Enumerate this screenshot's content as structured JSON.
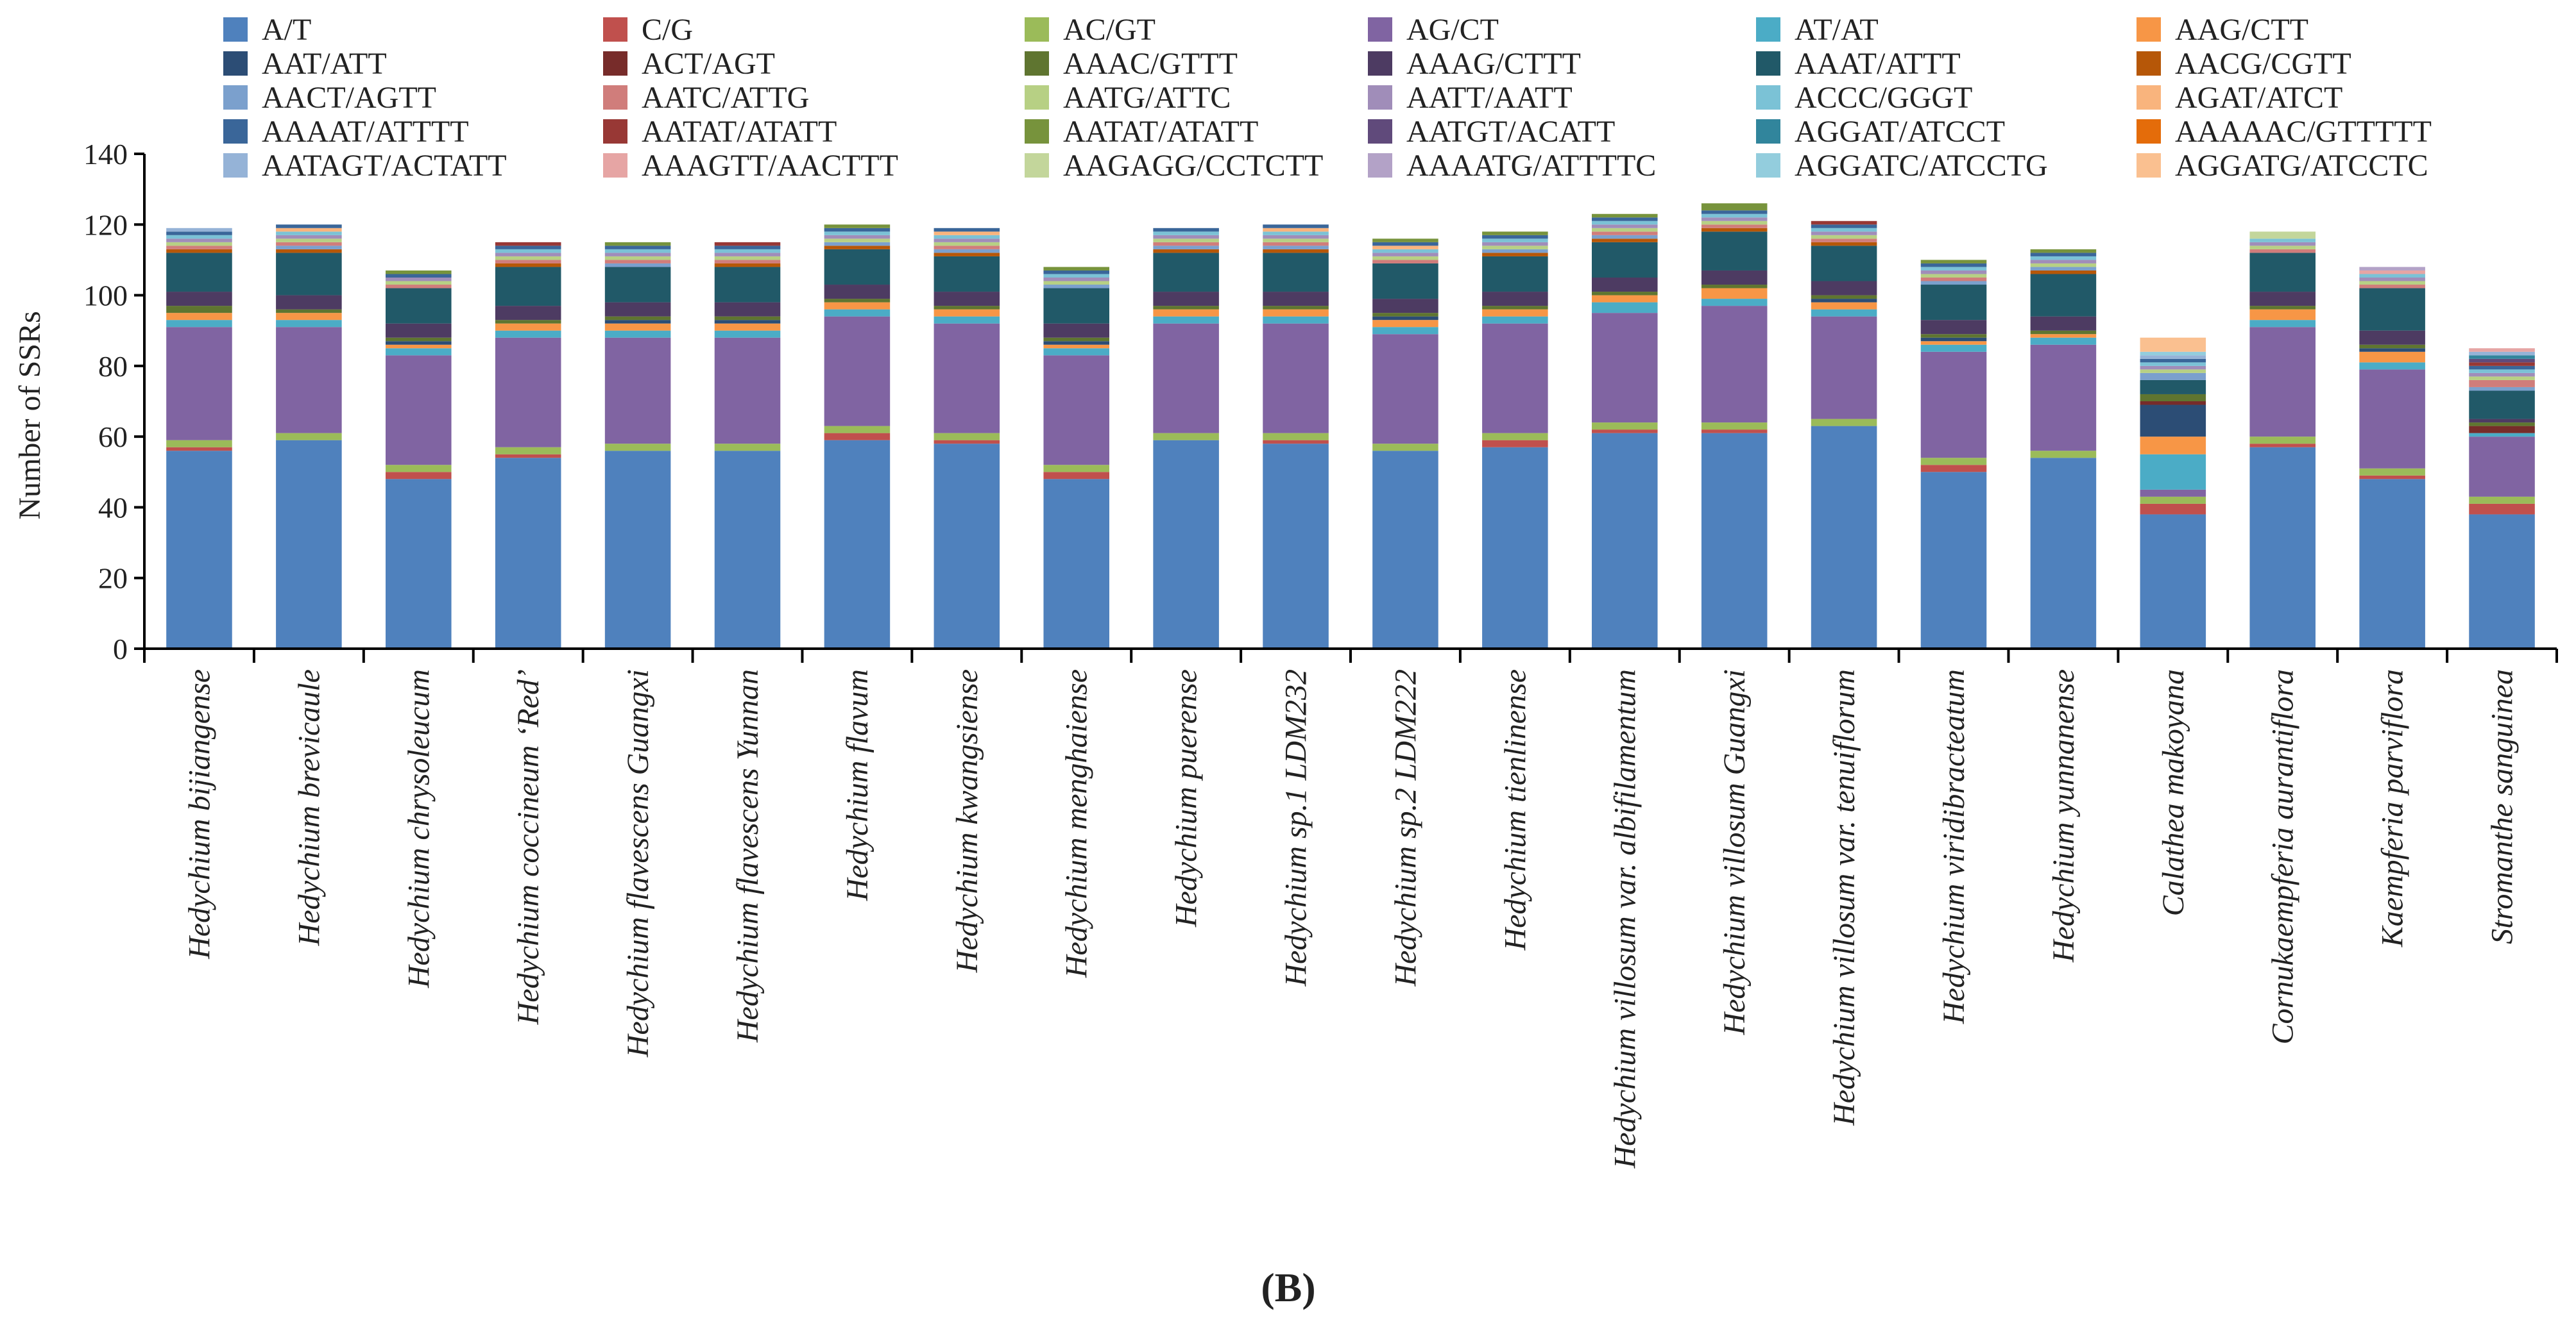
{
  "panel_label": "(B)",
  "chart_data": {
    "type": "bar",
    "stacked": true,
    "ylabel": "Number of SSRs",
    "ylim": [
      0,
      140
    ],
    "yticks": [
      0,
      20,
      40,
      60,
      80,
      100,
      120,
      140
    ],
    "grid": false,
    "legend_position": "top",
    "categories": [
      "Hedychium bijiangense",
      "Hedychium brevicaule",
      "Hedychium chrysoleucum",
      "Hedychium coccineum ‘Red’",
      "Hedychium flavescens Guangxi",
      "Hedychium flavescens Yunnan",
      "Hedychium flavum",
      "Hedychium kwangsiense",
      "Hedychium menghaiense",
      "Hedychium puerense",
      "Hedychium sp.1 LDM232",
      "Hedychium sp.2 LDM222",
      "Hedychium tienlinense",
      "Hedychium villosum var. albifilamentum",
      "Hedychium villosum Guangxi",
      "Hedychium villosum var. tenuiflorum",
      "Hedychium viridibracteatum",
      "Hedychium yunnanense",
      "Calathea makoyana",
      "Cornukaempferia aurantiflora",
      "Kaempferia parviflora",
      "Stromanthe sanguinea"
    ],
    "series": [
      {
        "name": "A/T",
        "color": "#4f81bd",
        "values": [
          56,
          59,
          48,
          54,
          56,
          56,
          59,
          58,
          48,
          59,
          58,
          56,
          57,
          61,
          61,
          63,
          50,
          54,
          38,
          57,
          48,
          38
        ]
      },
      {
        "name": "C/G",
        "color": "#c0504d",
        "values": [
          1,
          0,
          2,
          1,
          0,
          0,
          2,
          1,
          2,
          0,
          1,
          0,
          2,
          1,
          1,
          0,
          2,
          0,
          3,
          1,
          1,
          3
        ]
      },
      {
        "name": "AC/GT",
        "color": "#9bbb59",
        "values": [
          2,
          2,
          2,
          2,
          2,
          2,
          2,
          2,
          2,
          2,
          2,
          2,
          2,
          2,
          2,
          2,
          2,
          2,
          2,
          2,
          2,
          2
        ]
      },
      {
        "name": "AG/CT",
        "color": "#8064a2",
        "values": [
          32,
          30,
          31,
          31,
          30,
          30,
          31,
          31,
          31,
          31,
          31,
          31,
          31,
          31,
          33,
          29,
          30,
          30,
          2,
          31,
          28,
          17
        ]
      },
      {
        "name": "AT/AT",
        "color": "#4bacc6",
        "values": [
          2,
          2,
          2,
          2,
          2,
          2,
          2,
          2,
          2,
          2,
          2,
          2,
          2,
          3,
          2,
          2,
          2,
          2,
          10,
          2,
          2,
          1
        ]
      },
      {
        "name": "AAG/CTT",
        "color": "#f79646",
        "values": [
          2,
          2,
          1,
          2,
          2,
          2,
          2,
          2,
          1,
          2,
          2,
          2,
          2,
          2,
          3,
          2,
          1,
          1,
          5,
          3,
          3,
          0
        ]
      },
      {
        "name": "AAT/ATT",
        "color": "#2c4d75",
        "values": [
          0,
          0,
          1,
          0,
          1,
          1,
          0,
          0,
          1,
          0,
          0,
          1,
          0,
          0,
          0,
          1,
          1,
          0,
          9,
          0,
          1,
          0
        ]
      },
      {
        "name": "ACT/AGT",
        "color": "#772c2a",
        "values": [
          0,
          0,
          0,
          0,
          0,
          0,
          0,
          0,
          0,
          0,
          0,
          0,
          0,
          0,
          0,
          0,
          0,
          0,
          1,
          0,
          0,
          2
        ]
      },
      {
        "name": "AAAC/GTTT",
        "color": "#5f7530",
        "values": [
          2,
          1,
          1,
          1,
          1,
          1,
          1,
          1,
          1,
          1,
          1,
          1,
          1,
          1,
          1,
          1,
          1,
          1,
          2,
          1,
          1,
          1
        ]
      },
      {
        "name": "AAAG/CTTT",
        "color": "#4d3b62",
        "values": [
          4,
          4,
          4,
          4,
          4,
          4,
          4,
          4,
          4,
          4,
          4,
          4,
          4,
          4,
          4,
          4,
          4,
          4,
          0,
          4,
          4,
          1
        ]
      },
      {
        "name": "AAAT/ATTT",
        "color": "#215968",
        "values": [
          11,
          12,
          10,
          11,
          10,
          10,
          10,
          10,
          10,
          11,
          11,
          10,
          10,
          10,
          11,
          10,
          10,
          12,
          4,
          11,
          12,
          8
        ]
      },
      {
        "name": "AACG/CGTT",
        "color": "#b65708",
        "values": [
          1,
          1,
          0,
          1,
          0,
          1,
          1,
          1,
          0,
          1,
          1,
          0,
          1,
          1,
          1,
          1,
          0,
          1,
          0,
          0,
          0,
          0
        ]
      },
      {
        "name": "AACT/AGTT",
        "color": "#7ba0cd",
        "values": [
          0,
          1,
          0,
          0,
          1,
          0,
          1,
          1,
          1,
          1,
          1,
          0,
          1,
          1,
          0,
          0,
          1,
          1,
          2,
          0,
          0,
          1
        ]
      },
      {
        "name": "AATC/ATTG",
        "color": "#d07d7b",
        "values": [
          1,
          1,
          1,
          1,
          1,
          1,
          0,
          1,
          0,
          1,
          1,
          1,
          0,
          1,
          1,
          1,
          1,
          0,
          0,
          1,
          1,
          2
        ]
      },
      {
        "name": "AATG/ATTC",
        "color": "#b7d084",
        "values": [
          1,
          1,
          1,
          1,
          1,
          1,
          1,
          1,
          1,
          1,
          1,
          1,
          1,
          1,
          1,
          1,
          1,
          1,
          1,
          1,
          1,
          1
        ]
      },
      {
        "name": "AATT/AATT",
        "color": "#a08db9",
        "values": [
          1,
          1,
          1,
          1,
          1,
          1,
          1,
          1,
          1,
          1,
          1,
          1,
          1,
          1,
          1,
          1,
          1,
          1,
          1,
          1,
          1,
          1
        ]
      },
      {
        "name": "ACCC/GGGT",
        "color": "#7bc2d6",
        "values": [
          1,
          1,
          0,
          1,
          1,
          1,
          1,
          1,
          1,
          1,
          1,
          1,
          1,
          1,
          1,
          1,
          1,
          1,
          1,
          1,
          1,
          1
        ]
      },
      {
        "name": "AGAT/ATCT",
        "color": "#f9b47d",
        "values": [
          0,
          1,
          0,
          0,
          0,
          0,
          0,
          1,
          0,
          0,
          1,
          1,
          0,
          0,
          0,
          0,
          0,
          0,
          0,
          0,
          0,
          0
        ]
      },
      {
        "name": "AAAAT/ATTTT",
        "color": "#3a6699",
        "values": [
          1,
          1,
          1,
          1,
          1,
          1,
          1,
          1,
          1,
          1,
          1,
          1,
          1,
          1,
          1,
          1,
          1,
          1,
          1,
          0,
          0,
          1
        ]
      },
      {
        "name": "AATAT/ATATT",
        "color": "#983835",
        "values": [
          0,
          0,
          0,
          1,
          0,
          1,
          0,
          0,
          0,
          0,
          0,
          0,
          0,
          0,
          0,
          1,
          0,
          0,
          0,
          0,
          0,
          1
        ]
      },
      {
        "name": "AATAT/ATATT",
        "color": "#77933c",
        "values": [
          0,
          0,
          1,
          0,
          1,
          0,
          1,
          0,
          1,
          0,
          0,
          1,
          1,
          1,
          2,
          0,
          1,
          1,
          0,
          0,
          0,
          0
        ]
      },
      {
        "name": "AATGT/ACATT",
        "color": "#604a7b",
        "values": [
          0,
          0,
          0,
          0,
          0,
          0,
          0,
          0,
          0,
          0,
          0,
          0,
          0,
          0,
          0,
          0,
          0,
          0,
          0,
          0,
          0,
          1
        ]
      },
      {
        "name": "AGGAT/ATCCT",
        "color": "#31859c",
        "values": [
          0,
          0,
          0,
          0,
          0,
          0,
          0,
          0,
          0,
          0,
          0,
          0,
          0,
          0,
          0,
          0,
          0,
          0,
          0,
          0,
          0,
          1
        ]
      },
      {
        "name": "AAAAAC/GTTTTT",
        "color": "#e46c0a",
        "values": [
          0,
          0,
          0,
          0,
          0,
          0,
          0,
          0,
          0,
          0,
          0,
          0,
          0,
          0,
          0,
          0,
          0,
          0,
          0,
          0,
          0,
          0
        ]
      },
      {
        "name": "AATAGT/ACTATT",
        "color": "#95b3d7",
        "values": [
          1,
          0,
          0,
          0,
          0,
          0,
          0,
          0,
          0,
          0,
          0,
          0,
          0,
          0,
          0,
          0,
          0,
          0,
          1,
          0,
          0,
          1
        ]
      },
      {
        "name": "AAAGTT/AACTTT",
        "color": "#e6a5a4",
        "values": [
          0,
          0,
          0,
          0,
          0,
          0,
          0,
          0,
          0,
          0,
          0,
          0,
          0,
          0,
          0,
          0,
          0,
          0,
          0,
          0,
          1,
          1
        ]
      },
      {
        "name": "AAGAGG/CCTCTT",
        "color": "#c3d69b",
        "values": [
          0,
          0,
          0,
          0,
          0,
          0,
          0,
          0,
          0,
          0,
          0,
          0,
          0,
          0,
          0,
          0,
          0,
          0,
          0,
          2,
          0,
          0
        ]
      },
      {
        "name": "AAAATG/ATTTTC",
        "color": "#b3a2c7",
        "values": [
          0,
          0,
          0,
          0,
          0,
          0,
          0,
          0,
          0,
          0,
          0,
          0,
          0,
          0,
          0,
          0,
          0,
          0,
          0,
          0,
          1,
          0
        ]
      },
      {
        "name": "AGGATC/ATCCTG",
        "color": "#93cddd",
        "values": [
          0,
          0,
          0,
          0,
          0,
          0,
          0,
          0,
          0,
          0,
          0,
          0,
          0,
          0,
          0,
          0,
          0,
          0,
          1,
          0,
          0,
          0
        ]
      },
      {
        "name": "AGGATG/ATCCTC",
        "color": "#fac090",
        "values": [
          0,
          0,
          0,
          0,
          0,
          0,
          0,
          0,
          0,
          0,
          0,
          0,
          0,
          0,
          0,
          0,
          0,
          0,
          4,
          0,
          0,
          0
        ]
      }
    ]
  }
}
